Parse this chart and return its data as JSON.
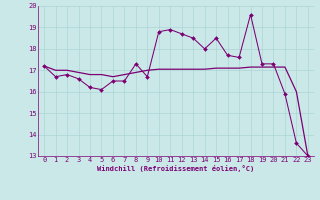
{
  "xlabel": "Windchill (Refroidissement éolien,°C)",
  "background_color": "#cbe8e8",
  "line_color": "#7b0073",
  "grid_color": "#aad4d4",
  "x_values": [
    0,
    1,
    2,
    3,
    4,
    5,
    6,
    7,
    8,
    9,
    10,
    11,
    12,
    13,
    14,
    15,
    16,
    17,
    18,
    19,
    20,
    21,
    22,
    23
  ],
  "line1_y": [
    17.2,
    16.7,
    16.8,
    16.6,
    16.2,
    16.1,
    16.5,
    16.5,
    17.3,
    16.7,
    18.8,
    18.9,
    18.7,
    18.5,
    18.0,
    18.5,
    17.7,
    17.6,
    19.6,
    17.3,
    17.3,
    15.9,
    13.6,
    13.0
  ],
  "line2_y": [
    17.2,
    17.0,
    17.0,
    16.9,
    16.8,
    16.8,
    16.7,
    16.8,
    16.9,
    17.0,
    17.05,
    17.05,
    17.05,
    17.05,
    17.05,
    17.1,
    17.1,
    17.1,
    17.15,
    17.15,
    17.15,
    17.15,
    16.0,
    13.0
  ],
  "ylim": [
    13,
    20
  ],
  "xlim": [
    -0.5,
    23.5
  ],
  "yticks": [
    13,
    14,
    15,
    16,
    17,
    18,
    19,
    20
  ],
  "xticks": [
    0,
    1,
    2,
    3,
    4,
    5,
    6,
    7,
    8,
    9,
    10,
    11,
    12,
    13,
    14,
    15,
    16,
    17,
    18,
    19,
    20,
    21,
    22,
    23
  ],
  "font_size": 5.0,
  "marker": "D",
  "marker_size": 2.0,
  "linewidth1": 0.75,
  "linewidth2": 0.9
}
